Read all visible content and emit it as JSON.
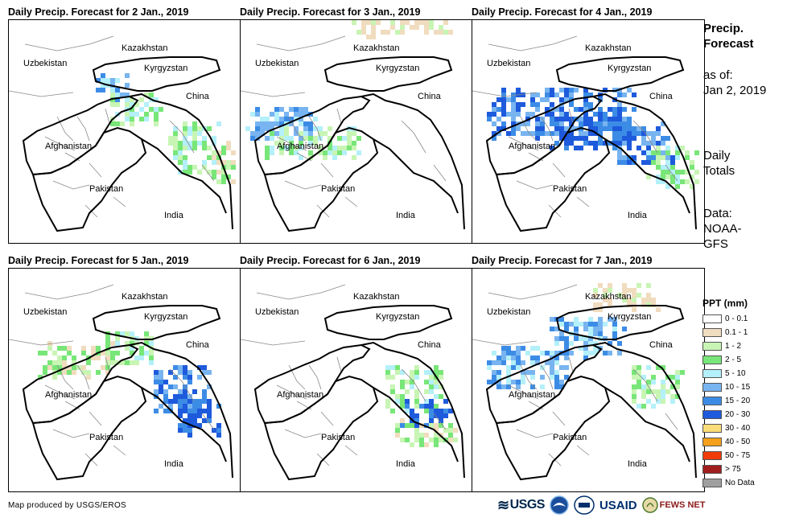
{
  "panels": [
    {
      "title": "Daily Precip. Forecast for 2 Jan., 2019",
      "precip_level": "light-north-east"
    },
    {
      "title": "Daily Precip. Forecast for 3 Jan., 2019",
      "precip_level": "light-west"
    },
    {
      "title": "Daily Precip. Forecast for 4 Jan., 2019",
      "precip_level": "heavy-north"
    },
    {
      "title": "Daily Precip. Forecast for 5 Jan., 2019",
      "precip_level": "moderate-east"
    },
    {
      "title": "Daily Precip. Forecast for 6 Jan., 2019",
      "precip_level": "light-east"
    },
    {
      "title": "Daily Precip. Forecast for 7 Jan., 2019",
      "precip_level": "moderate-north"
    }
  ],
  "labels": {
    "kazakhstan": "Kazakhstan",
    "uzbekistan": "Uzbekistan",
    "kyrgyzstan": "Kyrgyzstan",
    "china": "China",
    "afghanistan": "Afghanistan",
    "pakistan": "Pakistan",
    "india": "India"
  },
  "side": {
    "title_line1": "Precip.",
    "title_line2": "Forecast",
    "asof_line1": "as of:",
    "asof_line2": "Jan 2, 2019",
    "daily_line1": "Daily",
    "daily_line2": "Totals",
    "data_line1": "Data:",
    "data_line2": "NOAA-",
    "data_line3": "GFS"
  },
  "legend": {
    "title": "PPT (mm)",
    "items": [
      {
        "label": "0 - 0.1",
        "color": "#ffffff"
      },
      {
        "label": "0.1 - 1",
        "color": "#f0dcbe"
      },
      {
        "label": "1 - 2",
        "color": "#c8f5b4"
      },
      {
        "label": "2 - 5",
        "color": "#78e678"
      },
      {
        "label": "5 - 10",
        "color": "#b4f0fa"
      },
      {
        "label": "10 - 15",
        "color": "#78b4f0"
      },
      {
        "label": "15 - 20",
        "color": "#3c8ce6"
      },
      {
        "label": "20 - 30",
        "color": "#1e5adc"
      },
      {
        "label": "30 - 40",
        "color": "#fadc78"
      },
      {
        "label": "40 - 50",
        "color": "#f5a01e"
      },
      {
        "label": "50 - 75",
        "color": "#f03c0a"
      },
      {
        "label": "> 75",
        "color": "#a01e1e"
      },
      {
        "label": "No Data",
        "color": "#a0a0a0"
      }
    ]
  },
  "footer": {
    "credit": "Map produced by USGS/EROS"
  },
  "logos": {
    "usgs": "USGS",
    "noaa": "NOAA",
    "usaid": "USAID",
    "fews": "FEWS NET"
  }
}
